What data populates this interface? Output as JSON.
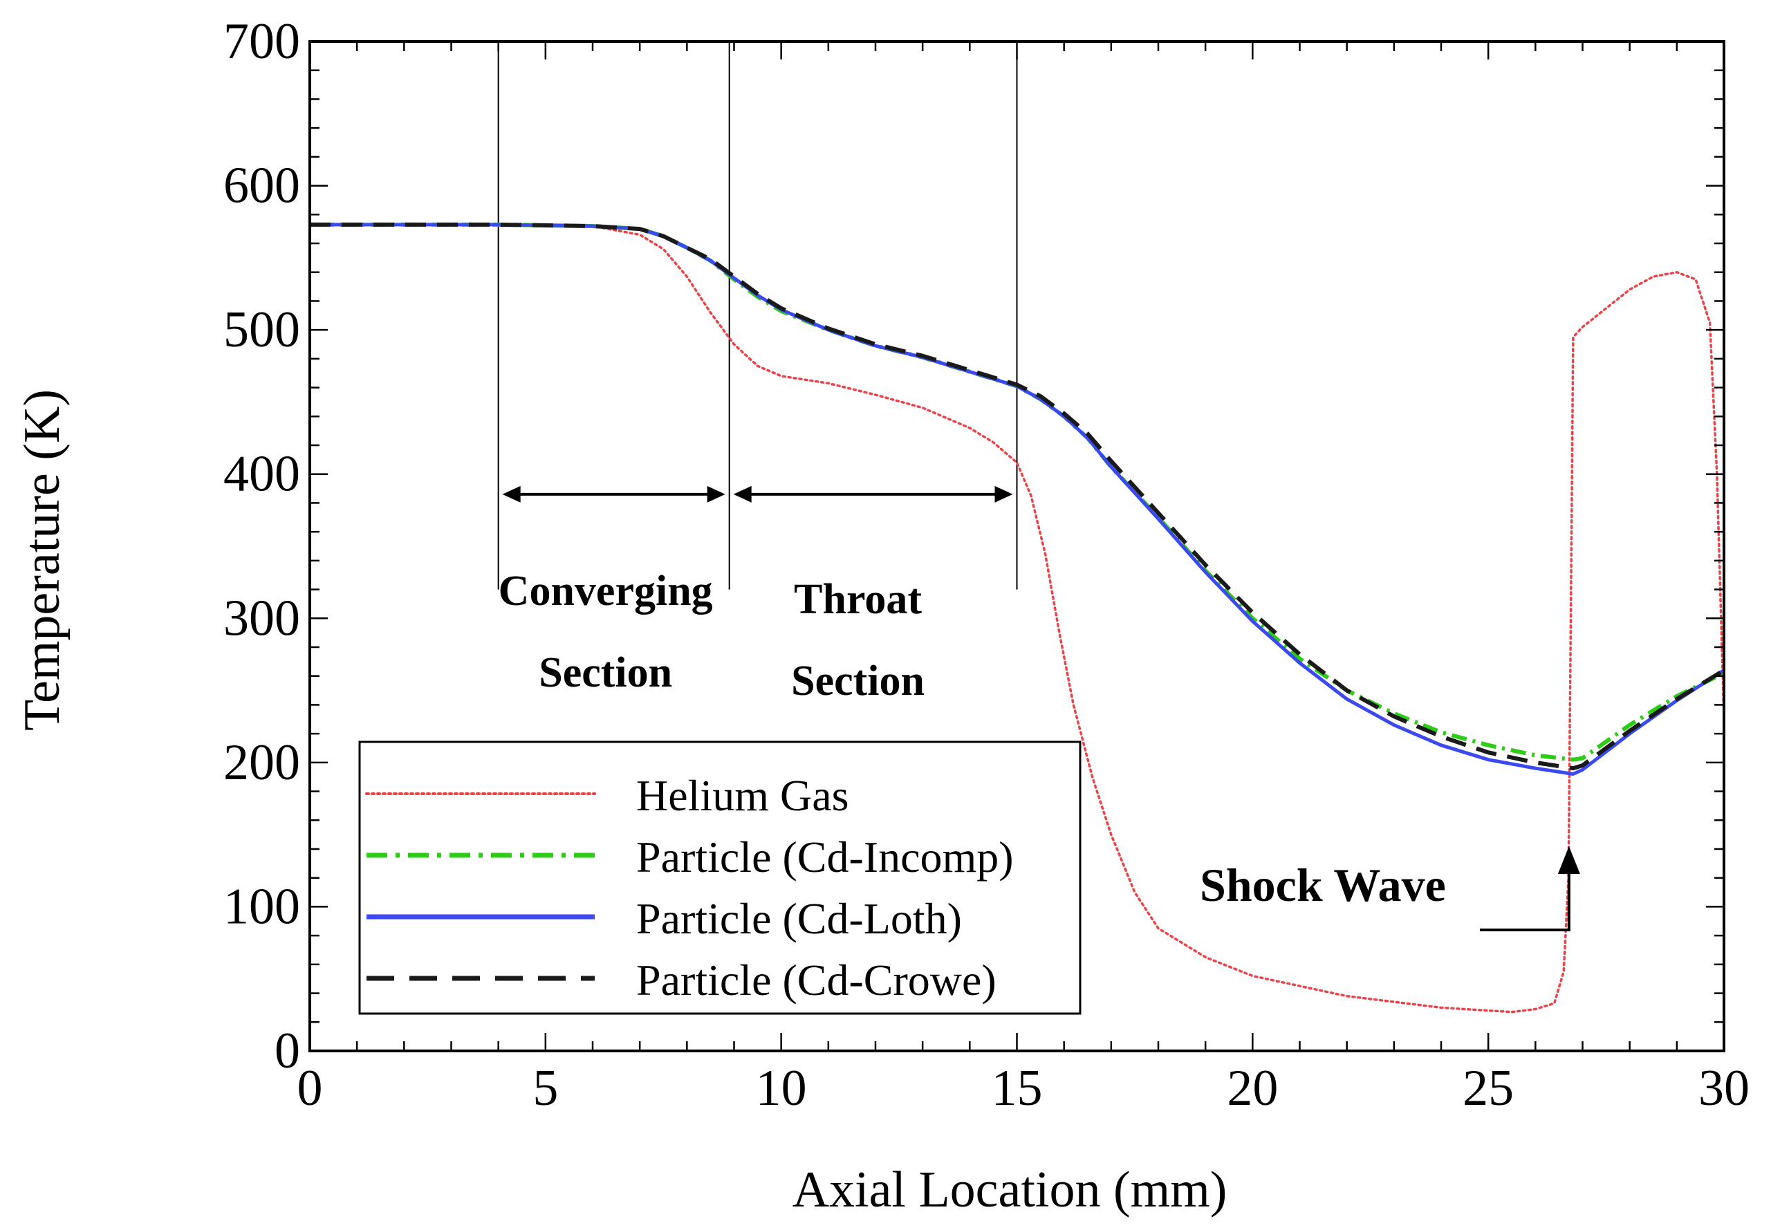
{
  "chart_data": {
    "type": "line",
    "title": "",
    "xlabel": "Axial Location (mm)",
    "ylabel": "Temperature (K)",
    "xlim": [
      0,
      30
    ],
    "ylim": [
      0,
      700
    ],
    "x_ticks": [
      0,
      5,
      10,
      15,
      20,
      25,
      30
    ],
    "y_ticks": [
      0,
      100,
      200,
      300,
      400,
      500,
      600,
      700
    ],
    "x_tick_labels": [
      "0",
      "5",
      "10",
      "15",
      "20",
      "25",
      "30"
    ],
    "y_tick_labels": [
      "0",
      "100",
      "200",
      "300",
      "400",
      "500",
      "600",
      "700"
    ],
    "grid": false,
    "legend_position": "bottom-left",
    "series": [
      {
        "name": "Helium Gas",
        "color": "#e8454a",
        "style": "dotted",
        "points": [
          [
            0,
            573
          ],
          [
            4,
            573
          ],
          [
            6,
            572
          ],
          [
            7,
            566
          ],
          [
            7.5,
            556
          ],
          [
            8,
            537
          ],
          [
            8.5,
            512
          ],
          [
            9,
            490
          ],
          [
            9.5,
            475
          ],
          [
            10,
            468
          ],
          [
            11,
            463
          ],
          [
            12,
            455
          ],
          [
            13,
            446
          ],
          [
            14,
            432
          ],
          [
            14.5,
            422
          ],
          [
            15,
            408
          ],
          [
            15.3,
            385
          ],
          [
            15.6,
            345
          ],
          [
            15.9,
            290
          ],
          [
            16.2,
            240
          ],
          [
            16.6,
            190
          ],
          [
            17,
            150
          ],
          [
            17.5,
            110
          ],
          [
            18,
            85
          ],
          [
            19,
            65
          ],
          [
            20,
            52
          ],
          [
            22,
            38
          ],
          [
            24,
            30
          ],
          [
            25.5,
            27
          ],
          [
            26,
            29
          ],
          [
            26.4,
            33
          ],
          [
            26.6,
            55
          ],
          [
            26.7,
            120
          ],
          [
            26.75,
            300
          ],
          [
            26.8,
            495
          ],
          [
            27,
            502
          ],
          [
            27.5,
            515
          ],
          [
            28,
            528
          ],
          [
            28.5,
            537
          ],
          [
            29,
            540
          ],
          [
            29.4,
            535
          ],
          [
            29.7,
            505
          ],
          [
            29.85,
            400
          ],
          [
            30,
            230
          ]
        ]
      },
      {
        "name": "Particle (Cd-Incomp)",
        "color": "#2ecc17",
        "style": "dash-dot",
        "points": [
          [
            0,
            573
          ],
          [
            4,
            573
          ],
          [
            6,
            572
          ],
          [
            7,
            570
          ],
          [
            7.5,
            565
          ],
          [
            8,
            557
          ],
          [
            8.5,
            548
          ],
          [
            9,
            535
          ],
          [
            9.5,
            523
          ],
          [
            10,
            513
          ],
          [
            11,
            500
          ],
          [
            12,
            489
          ],
          [
            13,
            481
          ],
          [
            14,
            471
          ],
          [
            15,
            461
          ],
          [
            15.5,
            452
          ],
          [
            16,
            440
          ],
          [
            16.5,
            425
          ],
          [
            17,
            405
          ],
          [
            18,
            370
          ],
          [
            19,
            333
          ],
          [
            20,
            300
          ],
          [
            21,
            272
          ],
          [
            22,
            250
          ],
          [
            23,
            234
          ],
          [
            24,
            221
          ],
          [
            25,
            212
          ],
          [
            26,
            205
          ],
          [
            26.8,
            202
          ],
          [
            27,
            203
          ],
          [
            28,
            226
          ],
          [
            29,
            246
          ],
          [
            30,
            262
          ]
        ]
      },
      {
        "name": "Particle (Cd-Loth)",
        "color": "#3b49f0",
        "style": "solid",
        "points": [
          [
            0,
            573
          ],
          [
            4,
            573
          ],
          [
            6,
            572
          ],
          [
            7,
            570
          ],
          [
            7.5,
            565
          ],
          [
            8,
            557
          ],
          [
            8.5,
            548
          ],
          [
            9,
            536
          ],
          [
            9.5,
            524
          ],
          [
            10,
            514
          ],
          [
            11,
            500
          ],
          [
            12,
            489
          ],
          [
            13,
            481
          ],
          [
            14,
            471
          ],
          [
            15,
            461
          ],
          [
            15.5,
            452
          ],
          [
            16,
            440
          ],
          [
            16.5,
            425
          ],
          [
            17,
            405
          ],
          [
            18,
            369
          ],
          [
            19,
            332
          ],
          [
            20,
            298
          ],
          [
            21,
            269
          ],
          [
            22,
            244
          ],
          [
            23,
            226
          ],
          [
            24,
            212
          ],
          [
            25,
            202
          ],
          [
            26,
            196
          ],
          [
            26.8,
            192
          ],
          [
            27,
            195
          ],
          [
            28,
            220
          ],
          [
            29,
            243
          ],
          [
            30,
            264
          ]
        ]
      },
      {
        "name": "Particle (Cd-Crowe)",
        "color": "#1a1a1a",
        "style": "dashed",
        "points": [
          [
            0,
            573
          ],
          [
            4,
            573
          ],
          [
            6,
            572
          ],
          [
            7,
            570
          ],
          [
            7.5,
            565
          ],
          [
            8,
            557
          ],
          [
            8.5,
            549
          ],
          [
            9,
            537
          ],
          [
            9.5,
            525
          ],
          [
            10,
            515
          ],
          [
            11,
            501
          ],
          [
            12,
            490
          ],
          [
            13,
            482
          ],
          [
            14,
            472
          ],
          [
            15,
            462
          ],
          [
            15.5,
            454
          ],
          [
            16,
            442
          ],
          [
            16.5,
            428
          ],
          [
            17,
            409
          ],
          [
            18,
            373
          ],
          [
            19,
            337
          ],
          [
            20,
            304
          ],
          [
            21,
            275
          ],
          [
            22,
            250
          ],
          [
            23,
            232
          ],
          [
            24,
            218
          ],
          [
            25,
            207
          ],
          [
            26,
            200
          ],
          [
            26.8,
            196
          ],
          [
            27,
            198
          ],
          [
            28,
            222
          ],
          [
            29,
            244
          ],
          [
            30,
            264
          ]
        ]
      }
    ],
    "section_lines_x": [
      4,
      8.9,
      15
    ],
    "annotations": [
      {
        "text_lines": [
          "Converging",
          "Section"
        ],
        "arrow_from_x": 4,
        "arrow_to_x": 8.9,
        "arrow_y": 386
      },
      {
        "text_lines": [
          "Throat",
          "Section"
        ],
        "arrow_from_x": 8.9,
        "arrow_to_x": 15,
        "arrow_y": 386
      },
      {
        "text": "Shock Wave",
        "points_to_x": 26.8,
        "points_to_y": 140
      }
    ]
  },
  "colors": {
    "axis": "#000000",
    "background": "#ffffff"
  }
}
